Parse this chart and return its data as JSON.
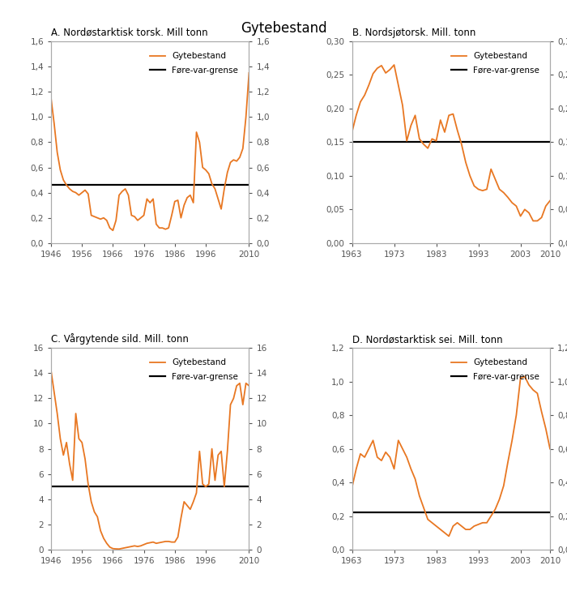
{
  "title": "Gytebestand",
  "line_color": "#E87722",
  "ref_color": "#000000",
  "spine_color": "#aaaaaa",
  "tick_color": "#555555",
  "panels": [
    {
      "label": "A. Nordøstarktisk torsk. Mill tonn",
      "xlim": [
        1946,
        2010
      ],
      "xticks": [
        1946,
        1956,
        1966,
        1976,
        1986,
        1996,
        2010
      ],
      "ylim": [
        0.0,
        1.6
      ],
      "yticks": [
        0.0,
        0.2,
        0.4,
        0.6,
        0.8,
        1.0,
        1.2,
        1.4,
        1.6
      ],
      "yticklabels": [
        "0,0",
        "0,2",
        "0,4",
        "0,6",
        "0,8",
        "1,0",
        "1,2",
        "1,4",
        "1,6"
      ],
      "ref_line": 0.46,
      "years": [
        1946,
        1947,
        1948,
        1949,
        1950,
        1951,
        1952,
        1953,
        1954,
        1955,
        1956,
        1957,
        1958,
        1959,
        1960,
        1961,
        1962,
        1963,
        1964,
        1965,
        1966,
        1967,
        1968,
        1969,
        1970,
        1971,
        1972,
        1973,
        1974,
        1975,
        1976,
        1977,
        1978,
        1979,
        1980,
        1981,
        1982,
        1983,
        1984,
        1985,
        1986,
        1987,
        1988,
        1989,
        1990,
        1991,
        1992,
        1993,
        1994,
        1995,
        1996,
        1997,
        1998,
        1999,
        2000,
        2001,
        2002,
        2003,
        2004,
        2005,
        2006,
        2007,
        2008,
        2009,
        2010
      ],
      "values": [
        1.15,
        0.95,
        0.72,
        0.58,
        0.5,
        0.46,
        0.43,
        0.41,
        0.4,
        0.38,
        0.4,
        0.42,
        0.39,
        0.22,
        0.21,
        0.2,
        0.19,
        0.2,
        0.18,
        0.12,
        0.1,
        0.18,
        0.38,
        0.41,
        0.43,
        0.38,
        0.22,
        0.21,
        0.18,
        0.2,
        0.22,
        0.35,
        0.32,
        0.35,
        0.15,
        0.12,
        0.12,
        0.11,
        0.12,
        0.22,
        0.33,
        0.34,
        0.2,
        0.3,
        0.36,
        0.38,
        0.32,
        0.88,
        0.8,
        0.6,
        0.58,
        0.55,
        0.47,
        0.43,
        0.35,
        0.27,
        0.43,
        0.56,
        0.64,
        0.66,
        0.65,
        0.68,
        0.75,
        1.0,
        1.35
      ]
    },
    {
      "label": "B. Nordsjøtorsk. Mill. tonn",
      "xlim": [
        1963,
        2010
      ],
      "xticks": [
        1963,
        1973,
        1983,
        1993,
        2003,
        2010
      ],
      "ylim": [
        0.0,
        0.3
      ],
      "yticks": [
        0.0,
        0.05,
        0.1,
        0.15,
        0.2,
        0.25,
        0.3
      ],
      "yticklabels": [
        "0,00",
        "0,05",
        "0,10",
        "0,15",
        "0,20",
        "0,25",
        "0,30"
      ],
      "ref_line": 0.15,
      "years": [
        1963,
        1964,
        1965,
        1966,
        1967,
        1968,
        1969,
        1970,
        1971,
        1972,
        1973,
        1974,
        1975,
        1976,
        1977,
        1978,
        1979,
        1980,
        1981,
        1982,
        1983,
        1984,
        1985,
        1986,
        1987,
        1988,
        1989,
        1990,
        1991,
        1992,
        1993,
        1994,
        1995,
        1996,
        1997,
        1998,
        1999,
        2000,
        2001,
        2002,
        2003,
        2004,
        2005,
        2006,
        2007,
        2008,
        2009,
        2010
      ],
      "values": [
        0.165,
        0.19,
        0.21,
        0.22,
        0.235,
        0.252,
        0.26,
        0.264,
        0.253,
        0.258,
        0.265,
        0.235,
        0.205,
        0.152,
        0.175,
        0.19,
        0.155,
        0.147,
        0.141,
        0.155,
        0.152,
        0.183,
        0.165,
        0.19,
        0.192,
        0.168,
        0.147,
        0.12,
        0.1,
        0.085,
        0.08,
        0.078,
        0.08,
        0.11,
        0.095,
        0.08,
        0.075,
        0.068,
        0.06,
        0.055,
        0.04,
        0.05,
        0.045,
        0.033,
        0.033,
        0.038,
        0.055,
        0.063
      ]
    },
    {
      "label": "C. Vårgytende sild. Mill. tonn",
      "xlim": [
        1946,
        2010
      ],
      "xticks": [
        1946,
        1956,
        1966,
        1976,
        1986,
        1996,
        2010
      ],
      "ylim": [
        0,
        16
      ],
      "yticks": [
        0,
        2,
        4,
        6,
        8,
        10,
        12,
        14,
        16
      ],
      "yticklabels": [
        "0",
        "2",
        "4",
        "6",
        "8",
        "10",
        "12",
        "14",
        "16"
      ],
      "ref_line": 5.0,
      "years": [
        1946,
        1947,
        1948,
        1949,
        1950,
        1951,
        1952,
        1953,
        1954,
        1955,
        1956,
        1957,
        1958,
        1959,
        1960,
        1961,
        1962,
        1963,
        1964,
        1965,
        1966,
        1967,
        1968,
        1969,
        1970,
        1971,
        1972,
        1973,
        1974,
        1975,
        1976,
        1977,
        1978,
        1979,
        1980,
        1981,
        1982,
        1983,
        1984,
        1985,
        1986,
        1987,
        1988,
        1989,
        1990,
        1991,
        1992,
        1993,
        1994,
        1995,
        1996,
        1997,
        1998,
        1999,
        2000,
        2001,
        2002,
        2003,
        2004,
        2005,
        2006,
        2007,
        2008,
        2009,
        2010
      ],
      "values": [
        14.2,
        12.5,
        10.8,
        8.8,
        7.5,
        8.5,
        6.8,
        5.5,
        10.8,
        8.8,
        8.5,
        7.2,
        5.2,
        3.8,
        3.0,
        2.6,
        1.5,
        0.9,
        0.5,
        0.2,
        0.08,
        0.06,
        0.05,
        0.1,
        0.15,
        0.2,
        0.25,
        0.3,
        0.25,
        0.3,
        0.4,
        0.5,
        0.55,
        0.6,
        0.5,
        0.55,
        0.6,
        0.65,
        0.65,
        0.6,
        0.6,
        1.0,
        2.5,
        3.8,
        3.5,
        3.2,
        3.8,
        4.5,
        7.8,
        5.2,
        5.0,
        5.2,
        8.0,
        5.5,
        7.5,
        7.8,
        5.0,
        7.8,
        11.5,
        12.0,
        13.0,
        13.2,
        11.5,
        13.2,
        13.0
      ]
    },
    {
      "label": "D. Nordøstarktisk sei. Mill. tonn",
      "xlim": [
        1963,
        2010
      ],
      "xticks": [
        1963,
        1973,
        1983,
        1993,
        2003,
        2010
      ],
      "ylim": [
        0.0,
        1.2
      ],
      "yticks": [
        0.0,
        0.2,
        0.4,
        0.6,
        0.8,
        1.0,
        1.2
      ],
      "yticklabels": [
        "0,0",
        "0,2",
        "0,4",
        "0,6",
        "0,8",
        "1,0",
        "1,2"
      ],
      "ref_line": 0.22,
      "years": [
        1963,
        1964,
        1965,
        1966,
        1967,
        1968,
        1969,
        1970,
        1971,
        1972,
        1973,
        1974,
        1975,
        1976,
        1977,
        1978,
        1979,
        1980,
        1981,
        1982,
        1983,
        1984,
        1985,
        1986,
        1987,
        1988,
        1989,
        1990,
        1991,
        1992,
        1993,
        1994,
        1995,
        1996,
        1997,
        1998,
        1999,
        2000,
        2001,
        2002,
        2003,
        2004,
        2005,
        2006,
        2007,
        2008,
        2009,
        2010
      ],
      "values": [
        0.37,
        0.48,
        0.57,
        0.55,
        0.6,
        0.65,
        0.55,
        0.53,
        0.58,
        0.55,
        0.48,
        0.65,
        0.6,
        0.55,
        0.48,
        0.42,
        0.32,
        0.25,
        0.18,
        0.16,
        0.14,
        0.12,
        0.1,
        0.08,
        0.14,
        0.16,
        0.14,
        0.12,
        0.12,
        0.14,
        0.15,
        0.16,
        0.16,
        0.2,
        0.24,
        0.3,
        0.38,
        0.52,
        0.65,
        0.8,
        1.02,
        1.03,
        0.98,
        0.95,
        0.93,
        0.82,
        0.72,
        0.6
      ]
    }
  ]
}
